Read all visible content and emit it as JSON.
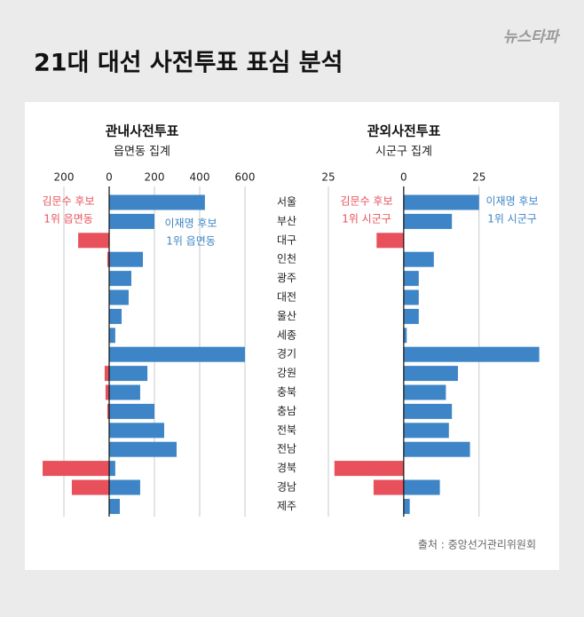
{
  "title": "21대 대선 사전투표 표심 분석",
  "logo": "뉴스타파",
  "source": "출처 : 중앙선거관리위원회",
  "chart_data": [
    {
      "type": "bar",
      "orientation": "horizontal",
      "title": "관내사전투표",
      "subtitle": "읍면동 집계",
      "categories": [
        "서울",
        "부산",
        "대구",
        "인천",
        "광주",
        "대전",
        "울산",
        "세종",
        "경기",
        "강원",
        "충북",
        "충남",
        "전북",
        "전남",
        "경북",
        "경남",
        "제주"
      ],
      "series": [
        {
          "color": "#e8505b",
          "values": [
            null,
            null,
            -137,
            -8,
            null,
            null,
            null,
            null,
            null,
            -20,
            -16,
            -8,
            null,
            null,
            -294,
            -165,
            null
          ]
        },
        {
          "color": "#3d85c6",
          "values": [
            423,
            200,
            null,
            149,
            98,
            86,
            55,
            27,
            600,
            169,
            137,
            200,
            243,
            298,
            27,
            137,
            47
          ]
        }
      ],
      "xlim": [
        -300,
        600
      ],
      "xticks": [
        {
          "value": -200,
          "label": "200"
        },
        0,
        200,
        400,
        600
      ],
      "grid": true,
      "annotations": [
        "김문수 후보",
        "1위 읍면동",
        "이재명 후보",
        "1위 읍면동"
      ]
    },
    {
      "type": "bar",
      "orientation": "horizontal",
      "title": "관외사전투표",
      "subtitle": "시군구 집계",
      "series": [
        {
          "color": "#e8505b",
          "values": [
            null,
            null,
            -9,
            null,
            null,
            null,
            null,
            null,
            null,
            null,
            null,
            null,
            null,
            null,
            -23,
            -10,
            null
          ]
        },
        {
          "color": "#3d85c6",
          "values": [
            25,
            16,
            null,
            10,
            5,
            5,
            5,
            1,
            45,
            18,
            14,
            16,
            15,
            22,
            null,
            12,
            2
          ]
        }
      ],
      "xlim": [
        -25,
        46
      ],
      "xticks": [
        {
          "value": -25,
          "label": "25"
        },
        0,
        25
      ],
      "grid": true,
      "annotations": [
        "김문수 후보",
        "1위 시군구",
        "이재명 후보",
        "1위 시군구"
      ]
    }
  ]
}
